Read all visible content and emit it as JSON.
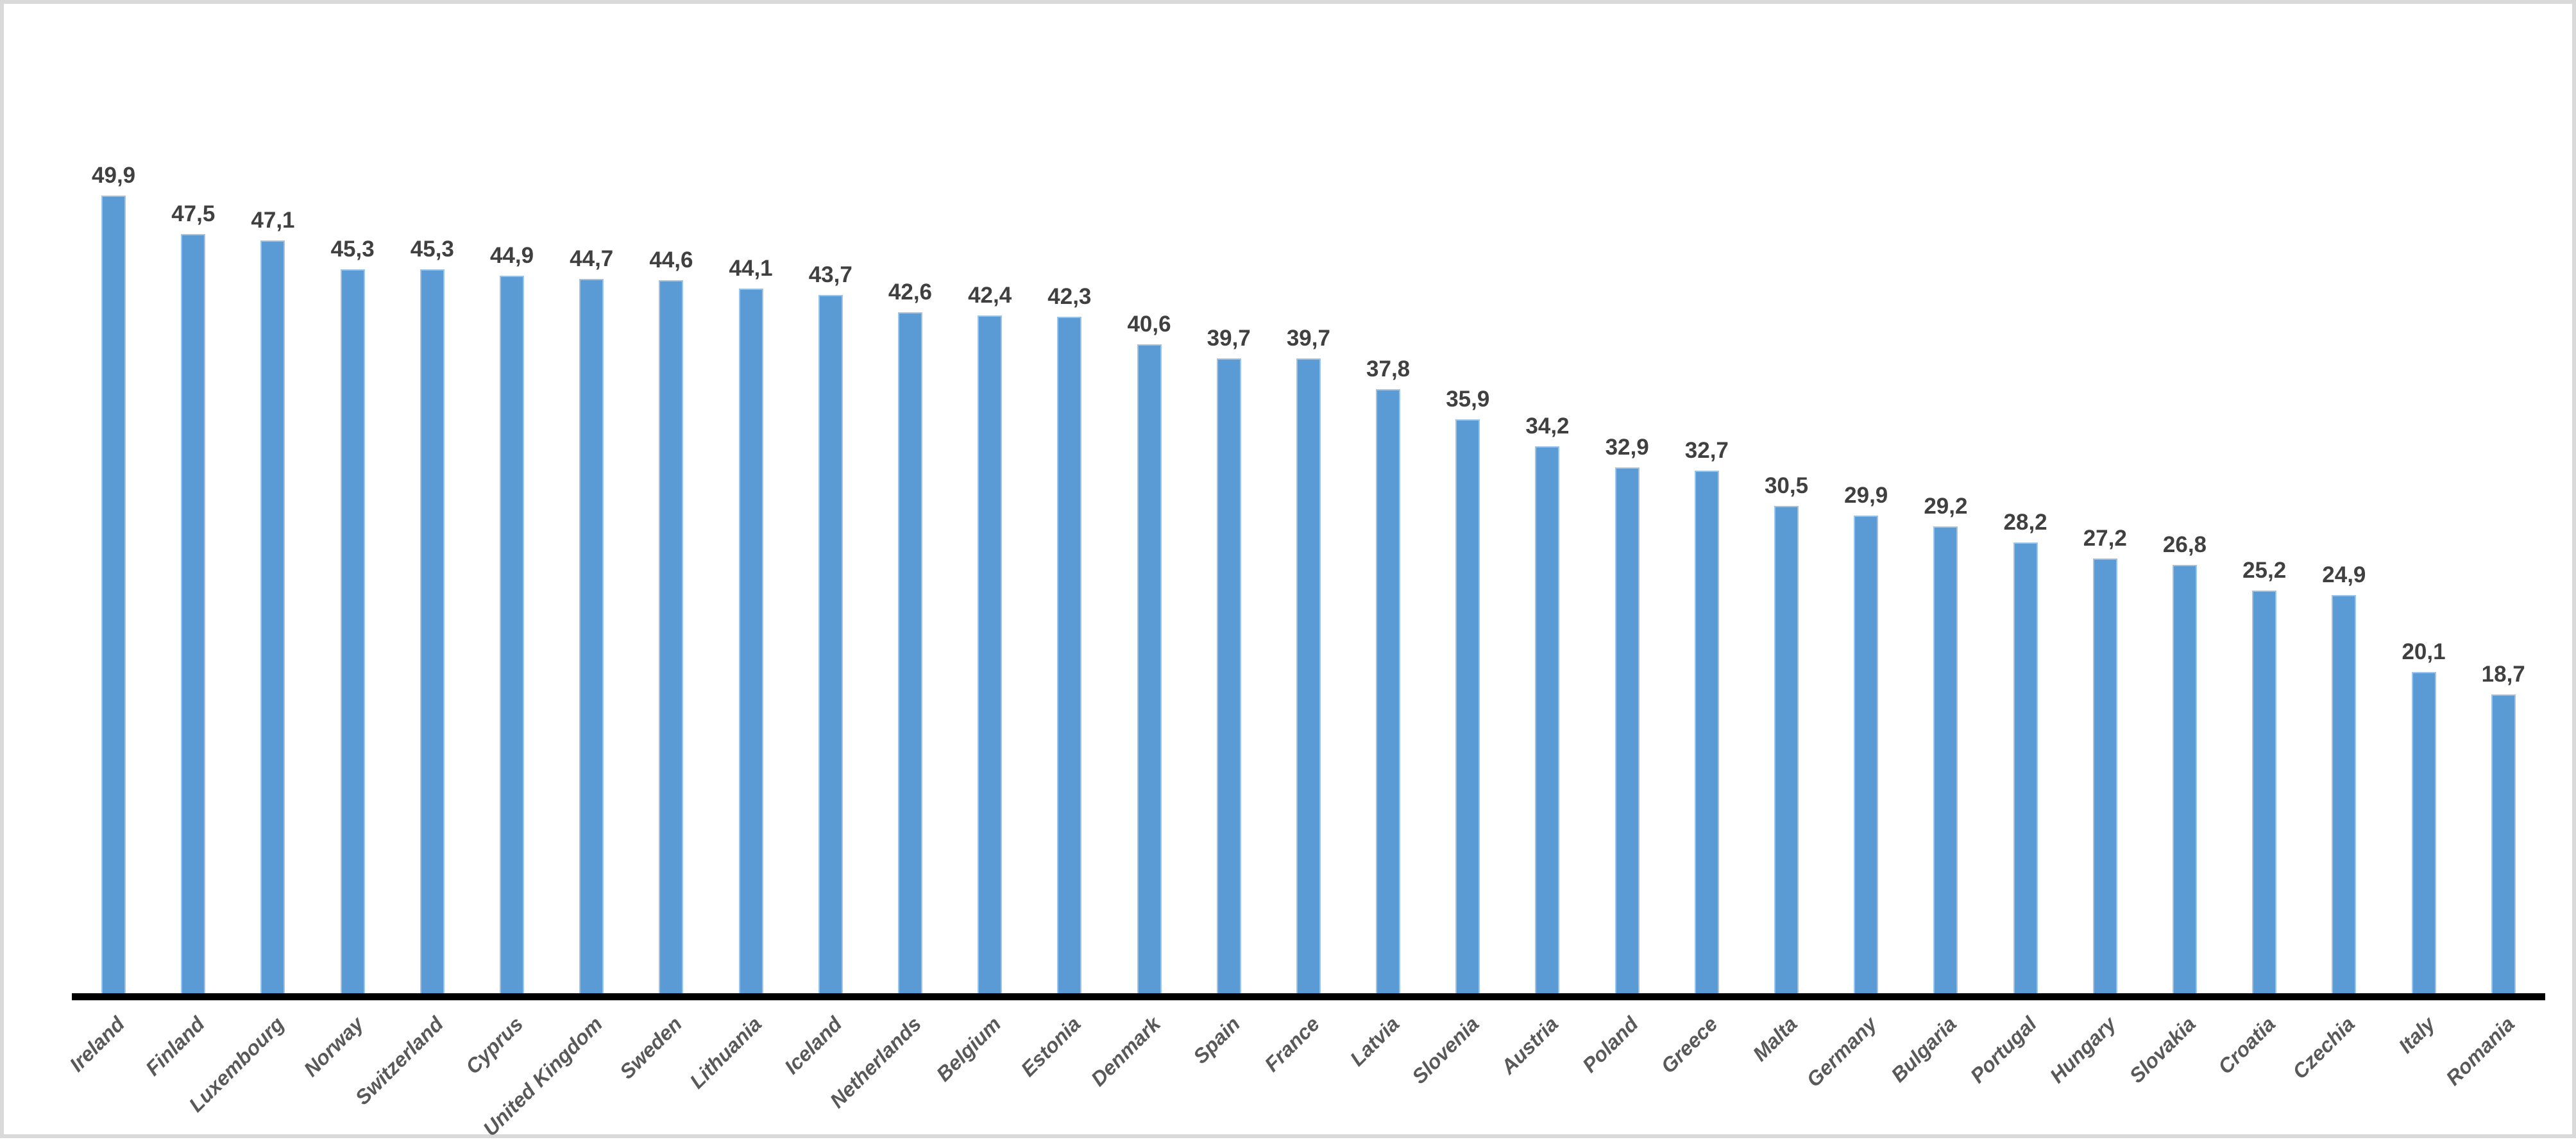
{
  "chart_data": {
    "type": "bar",
    "title": "",
    "xlabel": "",
    "ylabel": "",
    "categories": [
      "Ireland",
      "Finland",
      "Luxembourg",
      "Norway",
      "Switzerland",
      "Cyprus",
      "United Kingdom",
      "Sweden",
      "Lithuania",
      "Iceland",
      "Netherlands",
      "Belgium",
      "Estonia",
      "Denmark",
      "Spain",
      "France",
      "Latvia",
      "Slovenia",
      "Austria",
      "Poland",
      "Greece",
      "Malta",
      "Germany",
      "Bulgaria",
      "Portugal",
      "Hungary",
      "Slovakia",
      "Croatia",
      "Czechia",
      "Italy",
      "Romania"
    ],
    "values": [
      49.9,
      47.5,
      47.1,
      45.3,
      45.3,
      44.9,
      44.7,
      44.6,
      44.1,
      43.7,
      42.6,
      42.4,
      42.3,
      40.6,
      39.7,
      39.7,
      37.8,
      35.9,
      34.2,
      32.9,
      32.7,
      30.5,
      29.9,
      29.2,
      28.2,
      27.2,
      26.8,
      25.2,
      24.9,
      20.1,
      18.7
    ],
    "value_labels": [
      "49,9",
      "47,5",
      "47,1",
      "45,3",
      "45,3",
      "44,9",
      "44,7",
      "44,6",
      "44,1",
      "43,7",
      "42,6",
      "42,4",
      "42,3",
      "40,6",
      "39,7",
      "39,7",
      "37,8",
      "35,9",
      "34,2",
      "32,9",
      "32,7",
      "30,5",
      "29,9",
      "29,2",
      "28,2",
      "27,2",
      "26,8",
      "25,2",
      "24,9",
      "20,1",
      "18,7"
    ],
    "decimal_separator": ",",
    "ylim": [
      0,
      50
    ],
    "grid": false,
    "legend": "none",
    "y_axis_visible": false,
    "colors": {
      "bar_fill": "#5B9BD5",
      "bar_border": "#9DC3E6",
      "axis_line": "#000000",
      "value_label": "#404040",
      "category_label": "#595959",
      "frame_border": "#D9D9D9",
      "background": "#FFFFFF"
    }
  }
}
